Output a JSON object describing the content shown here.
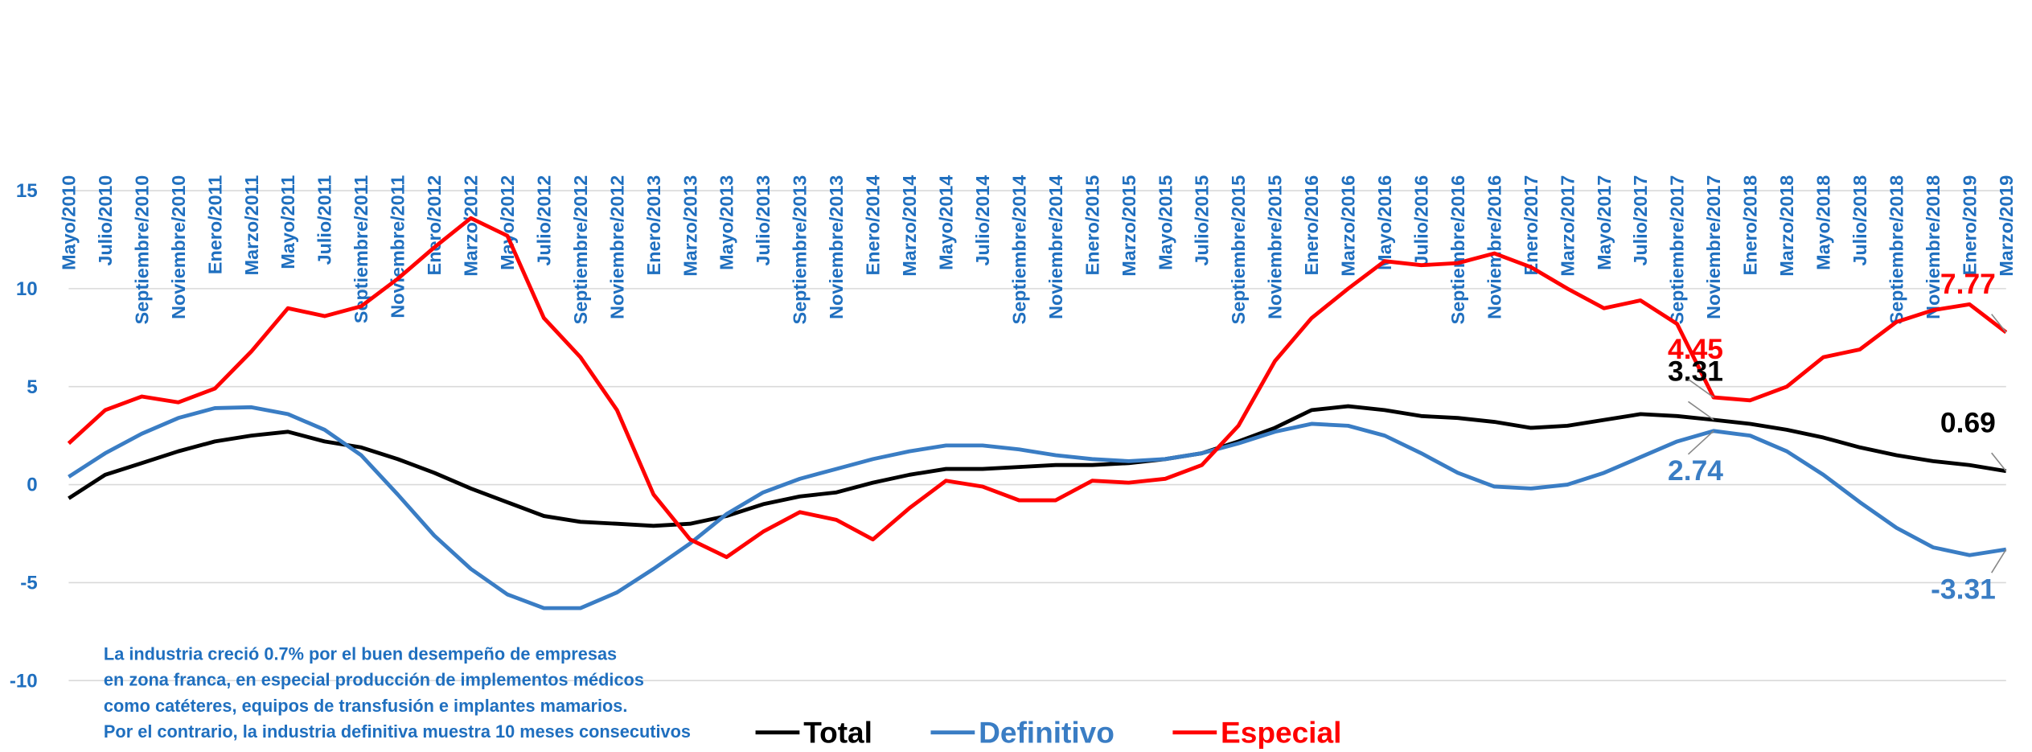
{
  "chart_data": {
    "type": "line",
    "categories": [
      "Mayo/2010",
      "Julio/2010",
      "Septiembre/2010",
      "Noviembre/2010",
      "Enero/2011",
      "Marzo/2011",
      "Mayo/2011",
      "Julio/2011",
      "Septiembre/2011",
      "Noviembre/2011",
      "Enero/2012",
      "Marzo/2012",
      "Mayo/2012",
      "Julio/2012",
      "Septiembre/2012",
      "Noviembre/2012",
      "Enero/2013",
      "Marzo/2013",
      "Mayo/2013",
      "Julio/2013",
      "Septiembre/2013",
      "Noviembre/2013",
      "Enero/2014",
      "Marzo/2014",
      "Mayo/2014",
      "Julio/2014",
      "Septiembre/2014",
      "Noviembre/2014",
      "Enero/2015",
      "Marzo/2015",
      "Mayo/2015",
      "Julio/2015",
      "Septiembre/2015",
      "Noviembre/2015",
      "Enero/2016",
      "Marzo/2016",
      "Mayo/2016",
      "Julio/2016",
      "Septiembre/2016",
      "Noviembre/2016",
      "Enero/2017",
      "Marzo/2017",
      "Mayo/2017",
      "Julio/2017",
      "Septiembre/2017",
      "Noviembre/2017",
      "Enero/2018",
      "Marzo/2018",
      "Mayo/2018",
      "Julio/2018",
      "Septiembre/2018",
      "Noviembre/2018",
      "Enero/2019",
      "Marzo/2019"
    ],
    "series": [
      {
        "name": "Total",
        "color": "#000000",
        "values": [
          -0.7,
          0.5,
          1.1,
          1.7,
          2.2,
          2.5,
          2.7,
          2.2,
          1.9,
          1.3,
          0.6,
          -0.2,
          -0.9,
          -1.6,
          -1.9,
          -2.0,
          -2.1,
          -2.0,
          -1.6,
          -1.0,
          -0.6,
          -0.4,
          0.1,
          0.5,
          0.8,
          0.8,
          0.9,
          1.0,
          1.0,
          1.1,
          1.3,
          1.6,
          2.2,
          2.9,
          3.8,
          4.0,
          3.8,
          3.5,
          3.4,
          3.2,
          2.9,
          3.0,
          3.3,
          3.6,
          3.5,
          3.31,
          3.1,
          2.8,
          2.4,
          1.9,
          1.5,
          1.2,
          1.0,
          0.69
        ],
        "value_labels": [
          null,
          null,
          null,
          null,
          null,
          null,
          null,
          null,
          null,
          null,
          null,
          null,
          null,
          null,
          null,
          null,
          null,
          null,
          null,
          null,
          null,
          null,
          null,
          null,
          null,
          null,
          null,
          null,
          null,
          null,
          null,
          null,
          null,
          null,
          null,
          null,
          null,
          null,
          null,
          null,
          null,
          null,
          null,
          null,
          null,
          "3.31",
          null,
          null,
          null,
          null,
          null,
          null,
          null,
          "0.69"
        ]
      },
      {
        "name": "Definitivo",
        "color": "#3a7dc4",
        "values": [
          0.4,
          1.6,
          2.6,
          3.4,
          3.9,
          3.95,
          3.6,
          2.8,
          1.5,
          -0.5,
          -2.6,
          -4.3,
          -5.6,
          -6.3,
          -6.3,
          -5.5,
          -4.3,
          -3.0,
          -1.5,
          -0.4,
          0.3,
          0.8,
          1.3,
          1.7,
          2.0,
          2.0,
          1.8,
          1.5,
          1.3,
          1.2,
          1.3,
          1.6,
          2.1,
          2.7,
          3.1,
          3.0,
          2.5,
          1.6,
          0.6,
          -0.1,
          -0.2,
          0.0,
          0.6,
          1.4,
          2.2,
          2.74,
          2.5,
          1.7,
          0.5,
          -0.9,
          -2.2,
          -3.2,
          -3.6,
          -3.31
        ],
        "value_labels": [
          null,
          null,
          null,
          null,
          null,
          null,
          null,
          null,
          null,
          null,
          null,
          null,
          null,
          null,
          null,
          null,
          null,
          null,
          null,
          null,
          null,
          null,
          null,
          null,
          null,
          null,
          null,
          null,
          null,
          null,
          null,
          null,
          null,
          null,
          null,
          null,
          null,
          null,
          null,
          null,
          null,
          null,
          null,
          null,
          null,
          "2.74",
          null,
          null,
          null,
          null,
          null,
          null,
          null,
          "-3.31"
        ]
      },
      {
        "name": "Especial",
        "color": "#ff0000",
        "values": [
          2.1,
          3.8,
          4.5,
          4.2,
          4.9,
          6.8,
          9.0,
          8.6,
          9.1,
          10.5,
          12.1,
          13.6,
          12.7,
          8.5,
          6.5,
          3.8,
          -0.5,
          -2.8,
          -3.7,
          -2.4,
          -1.4,
          -1.8,
          -2.8,
          -1.2,
          0.2,
          -0.1,
          -0.8,
          -0.8,
          0.2,
          0.1,
          0.3,
          1.0,
          3.0,
          6.3,
          8.5,
          10.0,
          11.4,
          11.2,
          11.3,
          11.8,
          11.1,
          10.0,
          9.0,
          9.4,
          8.2,
          4.45,
          4.3,
          5.0,
          6.5,
          6.9,
          8.3,
          8.9,
          9.2,
          7.77
        ],
        "value_labels": [
          null,
          null,
          null,
          null,
          null,
          null,
          null,
          null,
          null,
          null,
          null,
          null,
          null,
          null,
          null,
          null,
          null,
          null,
          null,
          null,
          null,
          null,
          null,
          null,
          null,
          null,
          null,
          null,
          null,
          null,
          null,
          null,
          null,
          null,
          null,
          null,
          null,
          null,
          null,
          null,
          null,
          null,
          null,
          null,
          null,
          "4.45",
          null,
          null,
          null,
          null,
          null,
          null,
          null,
          "7.77"
        ]
      }
    ],
    "ylim": [
      -10,
      15
    ],
    "yticks": [
      -10,
      -5,
      0,
      5,
      10,
      15
    ],
    "grid": true,
    "legend": "bottom",
    "note": [
      "La industria creció 0.7% por el buen desempeño de empresas",
      "en zona franca, en especial producción de implementos médicos",
      "como catéteres, equipos de transfusión e implantes mamarios.",
      "Por el contrario, la industria definitiva muestra 10 meses consecutivos"
    ]
  }
}
